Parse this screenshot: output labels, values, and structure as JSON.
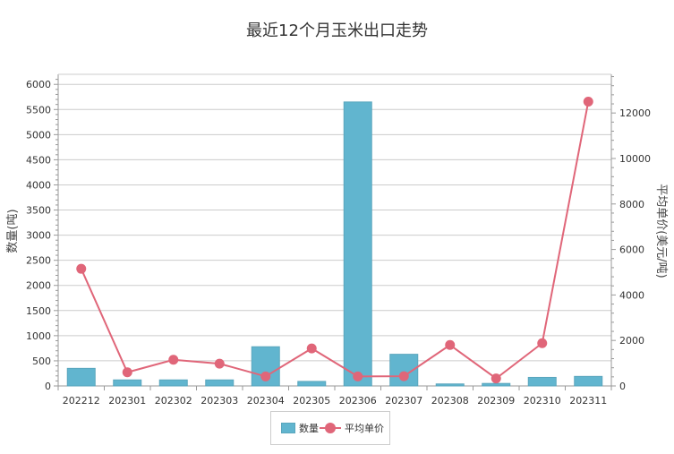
{
  "colors": {
    "bar": "#61b5cf",
    "bar_border": "#5aa6bd",
    "line": "#e06679",
    "grid": "#cccccc",
    "axis": "#999999"
  },
  "chart_data": {
    "type": "bar",
    "title": "最近12个月玉米出口走势",
    "categories": [
      "202212",
      "202301",
      "202302",
      "202303",
      "202304",
      "202305",
      "202306",
      "202307",
      "202308",
      "202309",
      "202310",
      "202311"
    ],
    "series": [
      {
        "name": "数量",
        "type": "bar",
        "axis": "left",
        "values": [
          350,
          120,
          120,
          120,
          780,
          90,
          5650,
          630,
          40,
          50,
          170,
          190
        ]
      },
      {
        "name": "平均单价",
        "type": "line",
        "axis": "right",
        "values": [
          5150,
          600,
          1150,
          980,
          420,
          1650,
          420,
          430,
          1800,
          330,
          1880,
          12500
        ]
      }
    ],
    "ylabel": "数量(吨)",
    "y2label": "平均单价(美元/吨)",
    "ylim": [
      0,
      6200
    ],
    "y2lim": [
      0,
      13700
    ],
    "yticks": [
      0,
      500,
      1000,
      1500,
      2000,
      2500,
      3000,
      3500,
      4000,
      4500,
      5000,
      5500,
      6000
    ],
    "y2ticks": [
      0,
      2000,
      4000,
      6000,
      8000,
      10000,
      12000
    ],
    "grid": true,
    "legend_position": "bottom-center"
  }
}
